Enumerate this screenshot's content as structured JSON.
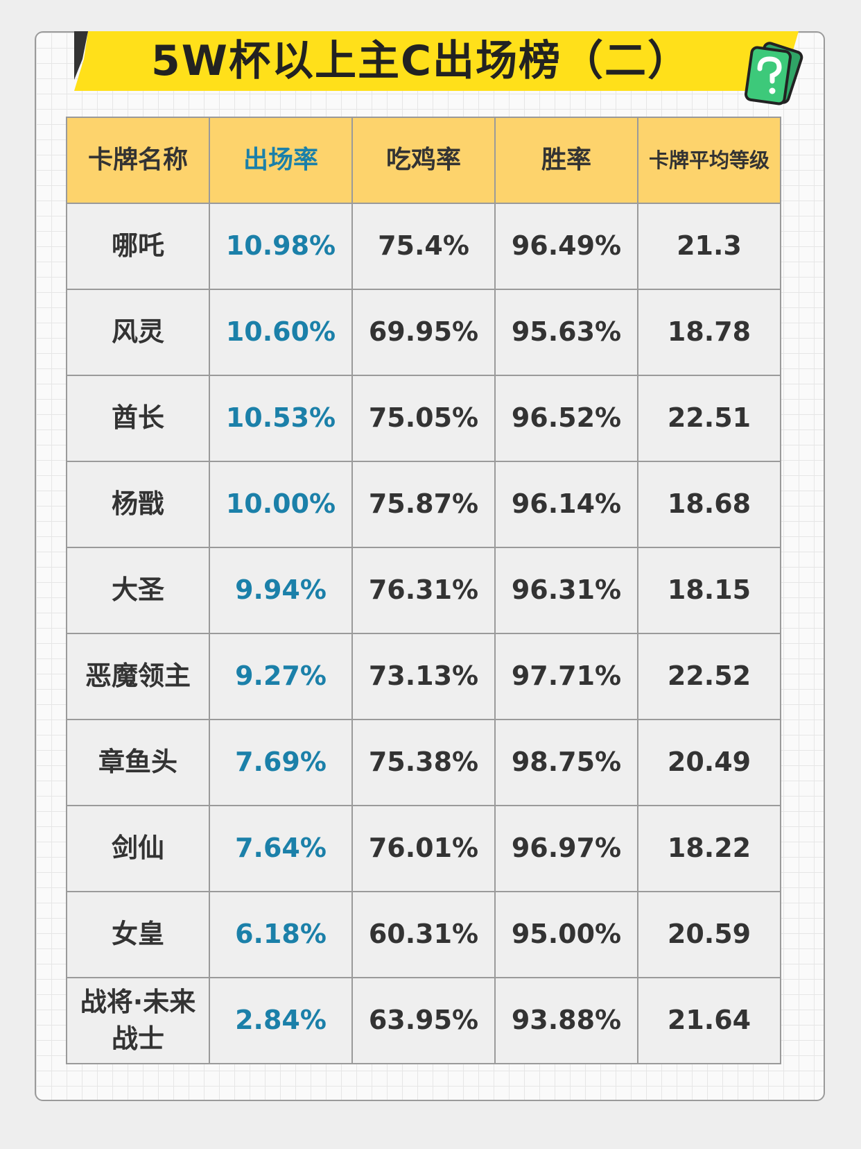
{
  "header": {
    "title": "5W杯以上主C出场榜（二）"
  },
  "table": {
    "columns": [
      "卡牌名称",
      "出场率",
      "吃鸡率",
      "胜率",
      "卡牌平均等级"
    ],
    "rows": [
      [
        "哪吒",
        "10.98%",
        "75.4%",
        "96.49%",
        "21.3"
      ],
      [
        "风灵",
        "10.60%",
        "69.95%",
        "95.63%",
        "18.78"
      ],
      [
        "酋长",
        "10.53%",
        "75.05%",
        "96.52%",
        "22.51"
      ],
      [
        "杨戬",
        "10.00%",
        "75.87%",
        "96.14%",
        "18.68"
      ],
      [
        "大圣",
        "9.94%",
        "76.31%",
        "96.31%",
        "18.15"
      ],
      [
        "恶魔领主",
        "9.27%",
        "73.13%",
        "97.71%",
        "22.52"
      ],
      [
        "章鱼头",
        "7.69%",
        "75.38%",
        "98.75%",
        "20.49"
      ],
      [
        "剑仙",
        "7.64%",
        "76.01%",
        "96.97%",
        "18.22"
      ],
      [
        "女皇",
        "6.18%",
        "60.31%",
        "95.00%",
        "20.59"
      ],
      [
        "战将·未来战士",
        "2.84%",
        "63.95%",
        "93.88%",
        "21.64"
      ]
    ]
  }
}
